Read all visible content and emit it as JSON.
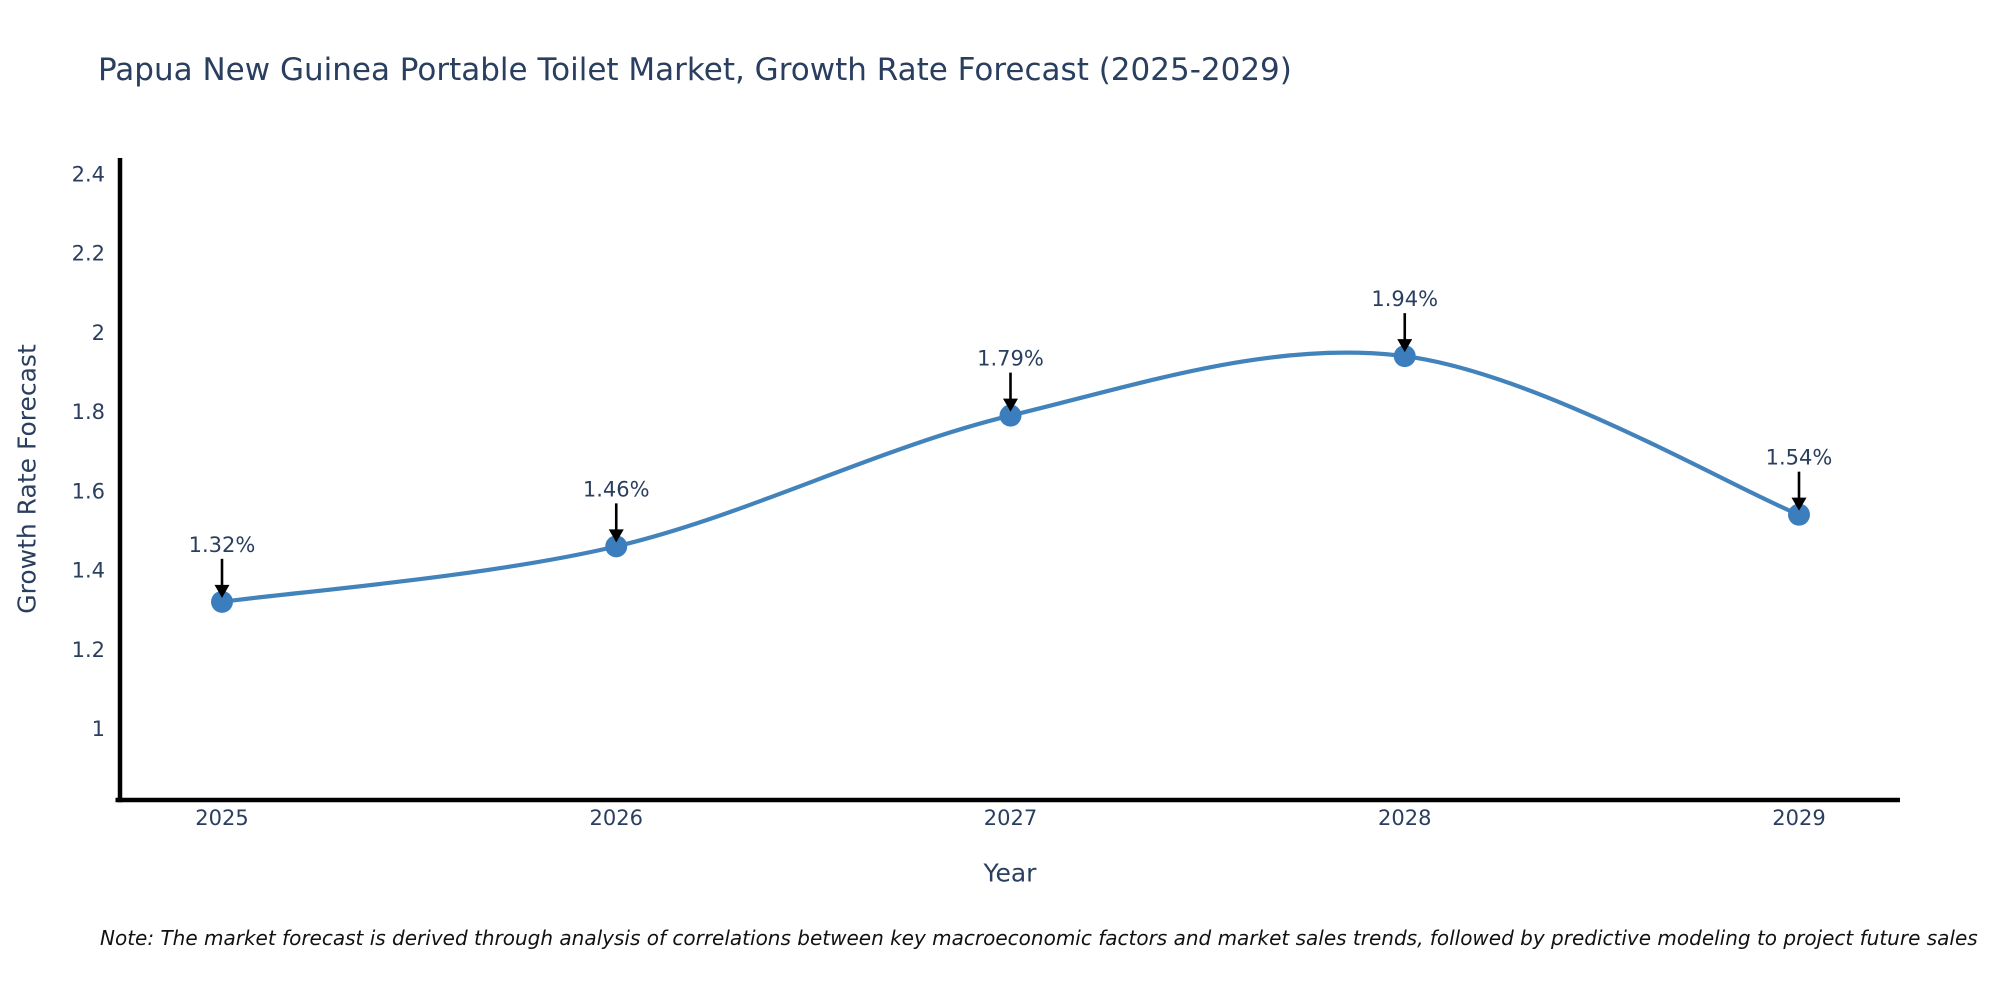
{
  "title": "Papua New Guinea Portable Toilet Market, Growth Rate Forecast (2025-2029)",
  "footnote": "Note: The market forecast is derived through analysis of correlations between key macroeconomic factors and market sales trends, followed by predictive modeling to project future sales",
  "chart_data": {
    "type": "line",
    "title": "Papua New Guinea Portable Toilet Market, Growth Rate Forecast (2025-2029)",
    "xlabel": "Year",
    "ylabel": "Growth Rate Forecast",
    "categories": [
      "2025",
      "2026",
      "2027",
      "2028",
      "2029"
    ],
    "values": [
      1.32,
      1.46,
      1.79,
      1.94,
      1.54
    ],
    "point_labels": [
      "1.32%",
      "1.46%",
      "1.79%",
      "1.94%",
      "1.54%"
    ],
    "y_ticks": [
      2.4,
      2.2,
      2,
      1.8,
      1.6,
      1.4,
      1.2,
      1
    ],
    "y_tick_labels": [
      "2.4",
      "2.2",
      "2",
      "1.8",
      "1.6",
      "1.4",
      "1.2",
      "1"
    ],
    "ylim": [
      0.82,
      2.44
    ],
    "line_shape": "spline",
    "grid": false,
    "legend": false,
    "colors": {
      "line": "#4383bc",
      "marker": "#3c7ebd",
      "axis": "#000000",
      "text": "#2a3f5f",
      "annotation_arrow": "#000000",
      "background": "#ffffff"
    }
  }
}
